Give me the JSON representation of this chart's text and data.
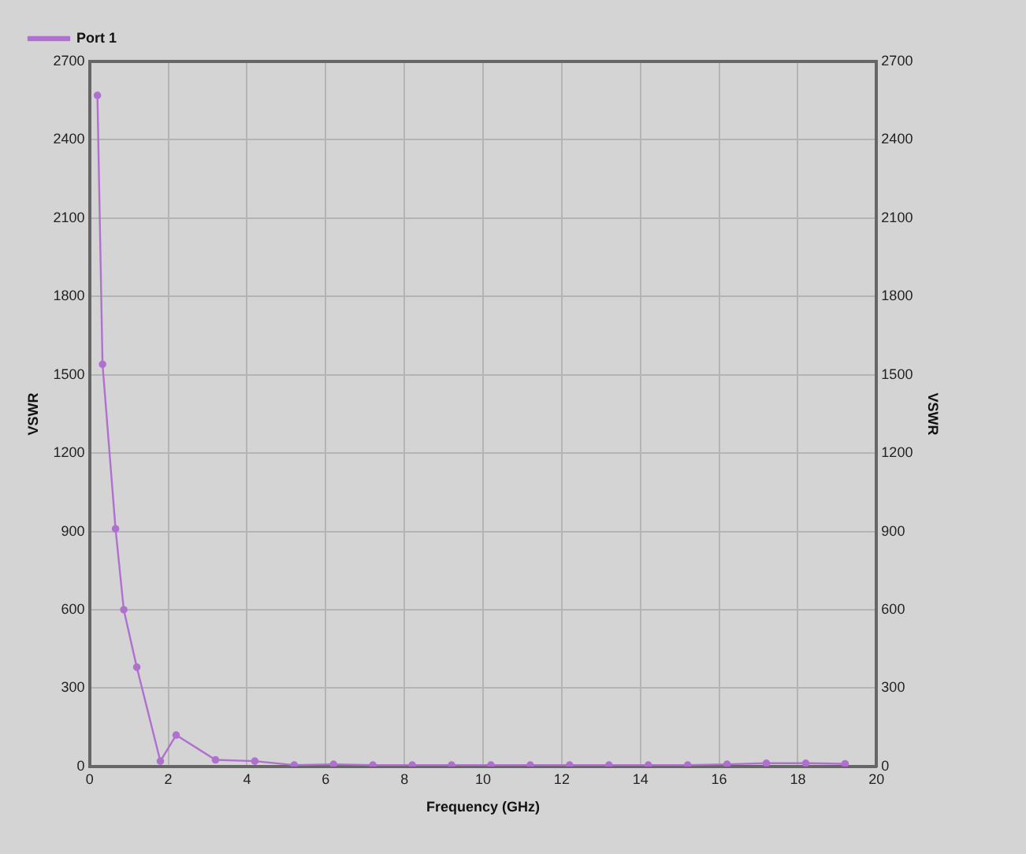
{
  "chart_data": {
    "type": "line",
    "xlabel": "Frequency (GHz)",
    "ylabel": "VSWR",
    "y2label": "VSWR",
    "xlim": [
      0,
      20
    ],
    "xticks": [
      0,
      2,
      4,
      6,
      8,
      10,
      12,
      14,
      16,
      18,
      20
    ],
    "ylim": [
      0,
      2700
    ],
    "yticks": [
      0,
      300,
      600,
      900,
      1200,
      1500,
      1800,
      2100,
      2400,
      2700
    ],
    "y2lim": [
      0,
      2700
    ],
    "y2ticks": [
      0,
      300,
      600,
      900,
      1200,
      1500,
      1800,
      2100,
      2400,
      2700
    ],
    "grid": true,
    "legend": "top left",
    "marker": "circle",
    "line_style": "solid",
    "series": [
      {
        "name": "Port 1",
        "color": "#b070d0",
        "x": [
          0.2,
          0.33,
          0.66,
          0.87,
          1.2,
          1.8,
          2.2,
          3.2,
          4.2,
          5.2,
          6.2,
          7.2,
          8.2,
          9.2,
          10.2,
          11.2,
          12.2,
          13.2,
          14.2,
          15.2,
          16.2,
          17.2,
          18.2,
          19.2
        ],
        "values": [
          2570,
          1540,
          910,
          600,
          380,
          20,
          120,
          25,
          20,
          5,
          8,
          5,
          5,
          5,
          5,
          5,
          5,
          5,
          5,
          5,
          8,
          12,
          12,
          10
        ]
      }
    ]
  }
}
